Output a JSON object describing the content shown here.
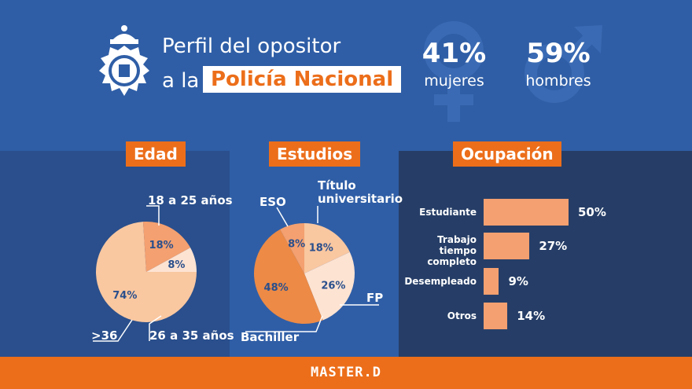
{
  "header": {
    "title_line1": "Perfil del opositor",
    "title_prefix": "a la",
    "title_highlight": "Policía Nacional",
    "women_pct": "41%",
    "women_label": "mujeres",
    "men_pct": "59%",
    "men_label": "hombres"
  },
  "sections": {
    "age": "Edad",
    "studies": "Estudios",
    "occupation": "Ocupación"
  },
  "footer": {
    "brand": "MASTER.D"
  },
  "icons": [
    "police-badge-icon",
    "female-symbol-icon",
    "male-symbol-icon"
  ],
  "colors": {
    "accent": "#ec6e1a",
    "header_bg": "#2f5ea6",
    "slice_light": "#f9c7a0",
    "slice_mid": "#f4a070",
    "slice_dark": "#ec8a46",
    "slice_pale": "#fde3d2",
    "bar": "#f4a070"
  },
  "chart_data": [
    {
      "type": "pie",
      "title": "Edad",
      "categories": [
        "18 a 25 años",
        "26 a 35 años",
        ">36"
      ],
      "values": [
        74,
        18,
        8
      ],
      "labels": [
        "74%",
        "18%",
        "8%"
      ]
    },
    {
      "type": "pie",
      "title": "Estudios",
      "categories": [
        "Título universitario",
        "FP",
        "Bachiller",
        "ESO"
      ],
      "values": [
        18,
        26,
        48,
        8
      ],
      "labels": [
        "18%",
        "26%",
        "48%",
        "8%"
      ]
    },
    {
      "type": "bar",
      "title": "Ocupación",
      "categories": [
        "Estudiante",
        "Trabajo tiempo completo",
        "Desempleado",
        "Otros"
      ],
      "values": [
        50,
        27,
        9,
        14
      ],
      "labels": [
        "50%",
        "27%",
        "9%",
        "14%"
      ]
    }
  ]
}
